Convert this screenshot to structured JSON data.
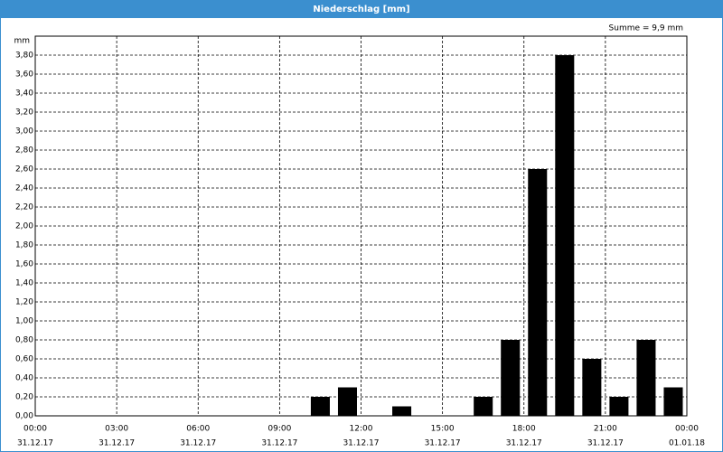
{
  "chart_data": {
    "type": "bar",
    "title": "Niederschlag [mm]",
    "annotation": "Summe = 9,9 mm",
    "y_label": "mm",
    "x": [
      10.5,
      11.5,
      13.5,
      16.5,
      17.5,
      18.5,
      19.5,
      20.5,
      21.5,
      22.5,
      23.5
    ],
    "values": [
      0.2,
      0.3,
      0.1,
      0.2,
      0.8,
      2.6,
      3.8,
      0.6,
      0.2,
      0.8,
      0.3
    ],
    "color": "#000000",
    "xlim": [
      0,
      24
    ],
    "xticks": [
      {
        "value": 0,
        "label": "00:00"
      },
      {
        "value": 3,
        "label": "03:00"
      },
      {
        "value": 6,
        "label": "06:00"
      },
      {
        "value": 9,
        "label": "09:00"
      },
      {
        "value": 12,
        "label": "12:00"
      },
      {
        "value": 15,
        "label": "15:00"
      },
      {
        "value": 18,
        "label": "18:00"
      },
      {
        "value": 21,
        "label": "21:00"
      },
      {
        "value": 24,
        "label": "00:00"
      }
    ],
    "xtick_dates": [
      "31.12.17",
      "31.12.17",
      "31.12.17",
      "31.12.17",
      "31.12.17",
      "31.12.17",
      "31.12.17",
      "31.12.17",
      "01.01.18"
    ],
    "ylim": [
      0,
      4.0
    ],
    "yticks": [
      {
        "value": 0,
        "label": "0,00"
      },
      {
        "value": 0.2,
        "label": "0,20"
      },
      {
        "value": 0.4,
        "label": "0,40"
      },
      {
        "value": 0.6,
        "label": "0,60"
      },
      {
        "value": 0.8,
        "label": "0,80"
      },
      {
        "value": 1.0,
        "label": "1,00"
      },
      {
        "value": 1.2,
        "label": "1,20"
      },
      {
        "value": 1.4,
        "label": "1,40"
      },
      {
        "value": 1.6,
        "label": "1,60"
      },
      {
        "value": 1.8,
        "label": "1,80"
      },
      {
        "value": 2.0,
        "label": "2,00"
      },
      {
        "value": 2.2,
        "label": "2,20"
      },
      {
        "value": 2.4,
        "label": "2,40"
      },
      {
        "value": 2.6,
        "label": "2,60"
      },
      {
        "value": 2.8,
        "label": "2,80"
      },
      {
        "value": 3.0,
        "label": "3,00"
      },
      {
        "value": 3.2,
        "label": "3,20"
      },
      {
        "value": 3.4,
        "label": "3,40"
      },
      {
        "value": 3.6,
        "label": "3,60"
      },
      {
        "value": 3.8,
        "label": "3,80"
      }
    ],
    "grid": true
  }
}
